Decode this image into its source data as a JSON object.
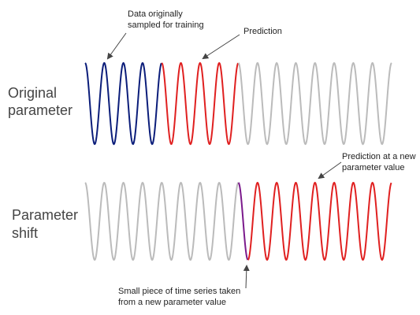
{
  "annotations": {
    "training": [
      "Data originally",
      "sampled for training"
    ],
    "prediction": [
      "Prediction"
    ],
    "new_prediction": [
      "Prediction at a new",
      "parameter value"
    ],
    "small_piece": [
      "Small piece of time series taken",
      "from a new parameter value"
    ]
  },
  "rows": [
    {
      "label": [
        "Original",
        "parameter"
      ]
    },
    {
      "label": [
        "Parameter",
        "shift"
      ]
    }
  ]
}
